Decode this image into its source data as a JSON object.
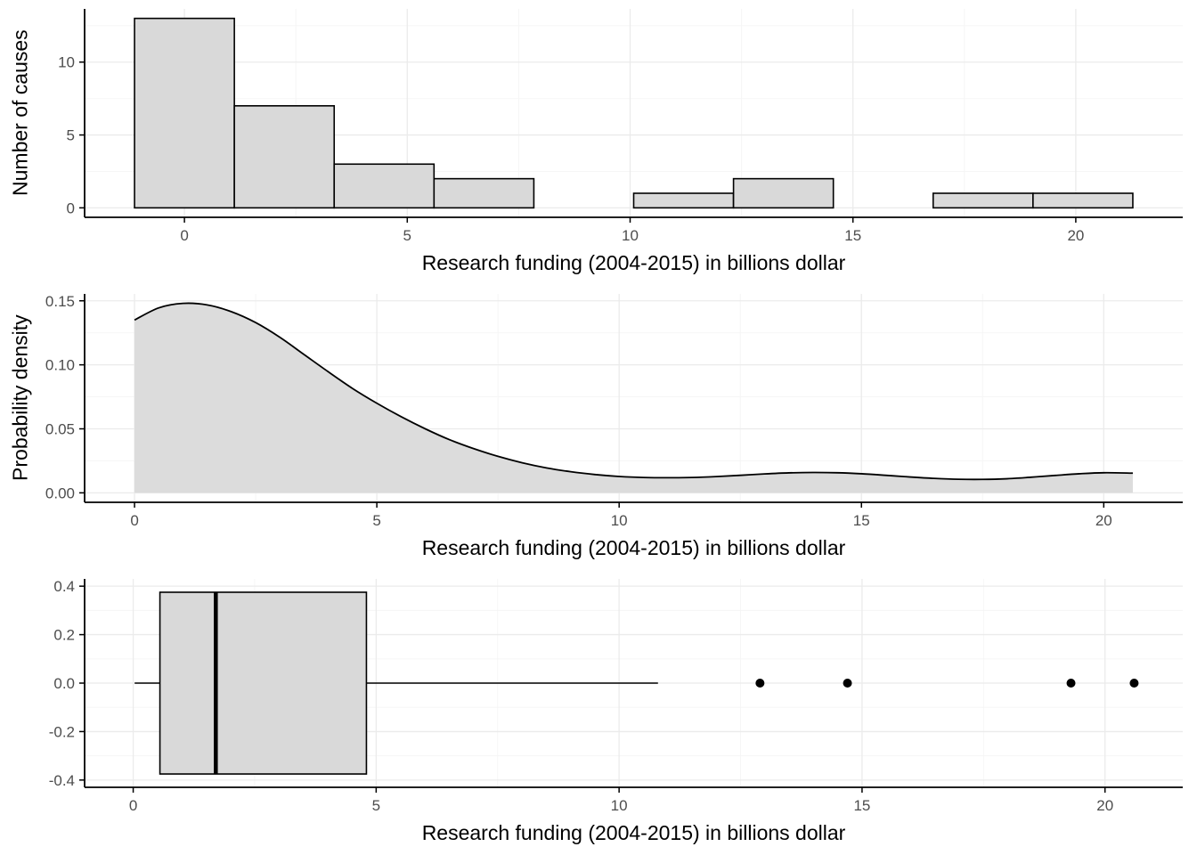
{
  "style": {
    "background": "#ffffff",
    "panel_bg": "#ffffff",
    "grid_major": "#ebebeb",
    "grid_minor": "#f5f5f5",
    "bar_fill": "#d9d9d9",
    "area_fill": "#dcdcdc",
    "stroke": "#000000",
    "axis_line": "#000000",
    "tick_label_color": "#4d4d4d",
    "title_color": "#000000"
  },
  "chart_data": [
    {
      "type": "histogram",
      "title": "",
      "xlabel": "Research funding (2004-2015) in billions dollar",
      "ylabel": "Number of causes",
      "bin_start": -1.12,
      "bin_width": 2.24,
      "counts": [
        13,
        7,
        3,
        2,
        0,
        1,
        2,
        0,
        1,
        1
      ],
      "xlim": [
        -2.24,
        22.4
      ],
      "ylim": [
        -0.65,
        13.65
      ],
      "x_ticks": [
        0,
        5,
        10,
        15,
        20
      ],
      "x_tick_labels": [
        "0",
        "5",
        "10",
        "15",
        "20"
      ],
      "x_minor": [
        -2.5,
        2.5,
        7.5,
        12.5,
        17.5,
        22.5
      ],
      "y_tick_values": [
        0,
        5,
        10
      ],
      "y_tick_labels": [
        "0",
        "5",
        "10"
      ],
      "y_minor": [
        2.5,
        7.5,
        12.5
      ],
      "grid": true,
      "legend": "none"
    },
    {
      "type": "density",
      "title": "",
      "xlabel": "Research funding (2004-2015) in billions dollar",
      "ylabel": "Probability density",
      "x": [
        0,
        0.5,
        1,
        1.5,
        2,
        2.5,
        3,
        3.5,
        4,
        4.5,
        5,
        5.5,
        6,
        6.5,
        7,
        7.5,
        8,
        8.5,
        9,
        9.5,
        10,
        10.5,
        11,
        11.5,
        12,
        12.5,
        13,
        13.5,
        14,
        14.5,
        15,
        15.5,
        16,
        16.5,
        17,
        17.5,
        18,
        18.5,
        19,
        19.5,
        20,
        20.6
      ],
      "y": [
        0.135,
        0.1445,
        0.148,
        0.1468,
        0.1415,
        0.133,
        0.1215,
        0.108,
        0.0945,
        0.0815,
        0.07,
        0.0595,
        0.05,
        0.0415,
        0.0345,
        0.0285,
        0.0235,
        0.0195,
        0.0165,
        0.0143,
        0.0128,
        0.012,
        0.0118,
        0.012,
        0.0127,
        0.0137,
        0.0148,
        0.0156,
        0.0159,
        0.0157,
        0.0149,
        0.0137,
        0.0124,
        0.0113,
        0.0106,
        0.0105,
        0.011,
        0.0122,
        0.0136,
        0.0149,
        0.0157,
        0.0154
      ],
      "xlim": [
        -1.03,
        21.63
      ],
      "ylim": [
        -0.0074,
        0.1554
      ],
      "x_ticks": [
        0,
        5,
        10,
        15,
        20
      ],
      "x_tick_labels": [
        "0",
        "5",
        "10",
        "15",
        "20"
      ],
      "x_minor": [
        2.5,
        7.5,
        12.5,
        17.5
      ],
      "y_tick_values": [
        0,
        0.05,
        0.1,
        0.15
      ],
      "y_tick_labels": [
        "0.00",
        "0.05",
        "0.10",
        "0.15"
      ],
      "y_minor": [
        0.025,
        0.075,
        0.125
      ],
      "grid": true,
      "legend": "none"
    },
    {
      "type": "boxplot",
      "title": "",
      "xlabel": "Research funding (2004-2015) in billions dollar",
      "ylabel": "",
      "box": {
        "whisker_min": 0.03,
        "q1": 0.55,
        "median": 1.7,
        "q3": 4.8,
        "whisker_max": 10.8,
        "half_height": 0.375,
        "outliers": [
          12.9,
          14.7,
          19.3,
          20.6
        ]
      },
      "xlim": [
        -1.0,
        21.6
      ],
      "ylim": [
        -0.43,
        0.43
      ],
      "x_ticks": [
        0,
        5,
        10,
        15,
        20
      ],
      "x_tick_labels": [
        "0",
        "5",
        "10",
        "15",
        "20"
      ],
      "x_minor": [
        2.5,
        7.5,
        12.5,
        17.5
      ],
      "y_tick_values": [
        -0.4,
        -0.2,
        0,
        0.2,
        0.4
      ],
      "y_tick_labels": [
        "-0.4",
        "-0.2",
        "0.0",
        "0.2",
        "0.4"
      ],
      "y_minor": [
        -0.3,
        -0.1,
        0.1,
        0.3
      ],
      "grid": true,
      "legend": "none"
    }
  ]
}
